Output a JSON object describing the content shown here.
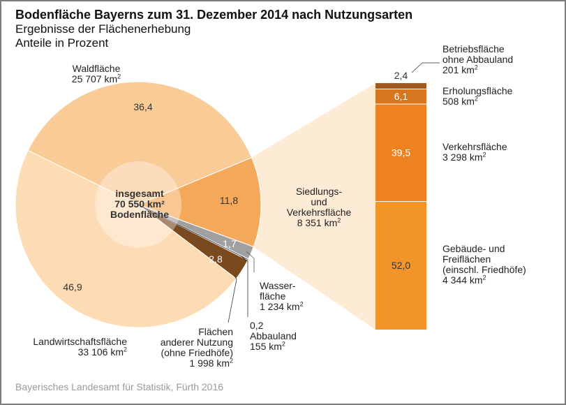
{
  "chart_data": {
    "type": "pie",
    "title": "Bodenfläche Bayerns zum 31. Dezember 2014 nach Nutzungsarten",
    "subtitle_lines": [
      "Ergebnisse der Flächenerhebung",
      "Anteile in Prozent"
    ],
    "center_label": [
      "insgesamt",
      "70 550 km²",
      "Bodenfläche"
    ],
    "pie": {
      "slices": [
        {
          "key": "siedlung",
          "name": "Siedlungs- und Verkehrsfläche",
          "label_lines": [
            "Siedlungs-",
            "und",
            "Verkehrsfläche"
          ],
          "area": "8 351 km",
          "value": 11.8,
          "value_label": "11,8",
          "color": "#f4a95a",
          "text_color": "#333333"
        },
        {
          "key": "wasser",
          "name": "Wasserfläche",
          "label_lines": [
            "Wasser-",
            "fläche"
          ],
          "area": "1 234 km",
          "value": 1.7,
          "value_label": "1,7",
          "color": "#a0a0a0",
          "text_color": "#ffffff"
        },
        {
          "key": "abbau",
          "name": "Abbauland",
          "label_lines": [
            "0,2",
            "Abbauland"
          ],
          "area": "155 km",
          "value": 0.2,
          "value_label": "0,2",
          "color": "#ffffff",
          "text_color": "#333333"
        },
        {
          "key": "andere",
          "name": "Flächen anderer Nutzung (ohne Friedhöfe)",
          "label_lines": [
            "Flächen",
            "anderer Nutzung",
            "(ohne Friedhöfe)"
          ],
          "area": "1 998 km",
          "value": 2.8,
          "value_label": "2,8",
          "color": "#7a4a1e",
          "text_color": "#ffffff"
        },
        {
          "key": "landwirtschaft",
          "name": "Landwirtschaftsfläche",
          "label_lines": [
            "Landwirtschaftsfläche"
          ],
          "area": "33 106 km",
          "value": 46.9,
          "value_label": "46,9",
          "color": "#fddcb5",
          "text_color": "#333333"
        },
        {
          "key": "wald",
          "name": "Waldfläche",
          "label_lines": [
            "Waldfläche"
          ],
          "area": "25 707 km",
          "value": 36.4,
          "value_label": "36,4",
          "color": "#f9cb97",
          "text_color": "#333333"
        }
      ]
    },
    "breakdown_bar": {
      "of": "Siedlungs- und Verkehrsfläche",
      "segments": [
        {
          "name": "Betriebsfläche ohne Abbauland",
          "label_lines": [
            "Betriebsfläche",
            "ohne Abbauland"
          ],
          "area": "201 km",
          "value": 2.4,
          "value_label": "2,4",
          "color": "#a05a20",
          "text_color": "#333333"
        },
        {
          "name": "Erholungsfläche",
          "label_lines": [
            "Erholungsfläche"
          ],
          "area": "508 km",
          "value": 6.1,
          "value_label": "6,1",
          "color": "#d7761f",
          "text_color": "#ffffff"
        },
        {
          "name": "Verkehrsfläche",
          "label_lines": [
            "Verkehrsfläche"
          ],
          "area": "3 298 km",
          "value": 39.5,
          "value_label": "39,5",
          "color": "#ee8220",
          "text_color": "#ffffff"
        },
        {
          "name": "Gebäude- und Freiflächen (einschl. Friedhöfe)",
          "label_lines": [
            "Gebäude- und",
            "Freiflächen",
            "(einschl. Friedhöfe)"
          ],
          "area": "4 344 km",
          "value": 52.0,
          "value_label": "52,0",
          "color": "#f39429",
          "text_color": "#333333"
        }
      ]
    },
    "unit_superscript": "2",
    "colors": {
      "connector_fill": "#fdebd6",
      "center_circle": "#fde3c6"
    }
  },
  "source": "Bayerisches Landesamt für Statistik, Fürth 2016"
}
